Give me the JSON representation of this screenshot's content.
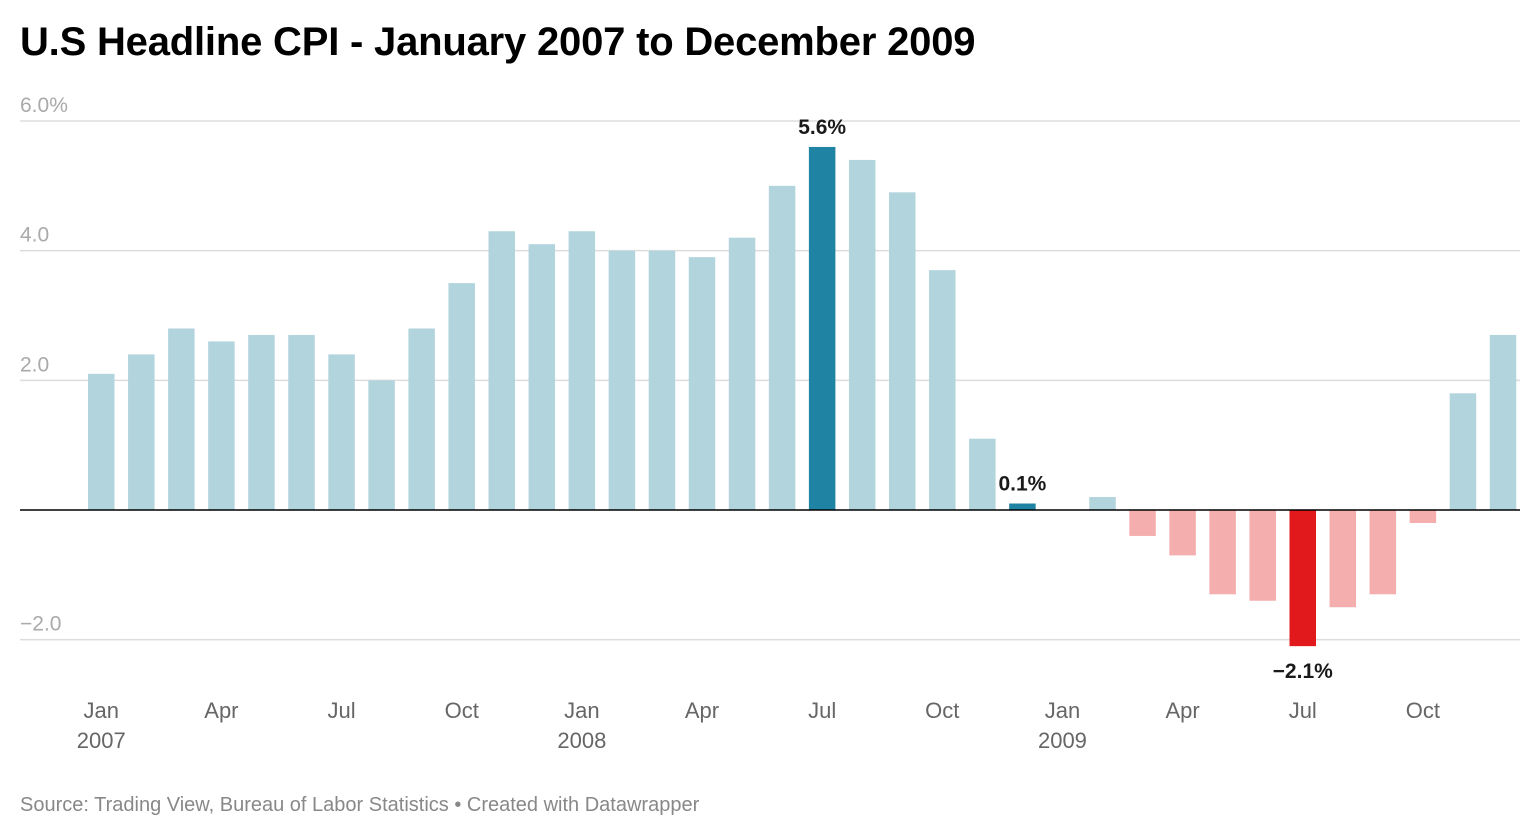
{
  "title": "U.S Headline CPI - January 2007 to December 2009",
  "footer": {
    "source": "Source: Trading View, Bureau of Labor Statistics",
    "separator": " • ",
    "credit": "Created with Datawrapper"
  },
  "colors": {
    "positive": "#b2d4dd",
    "positive_highlight": "#1f83a4",
    "negative": "#f4aeae",
    "negative_highlight": "#e1181c",
    "gridline": "#dddddd",
    "baseline": "#000000",
    "axis_text": "#aaaaaa",
    "tick_text": "#666666",
    "annotation_text": "#1a1a1a"
  },
  "chart_data": {
    "type": "bar",
    "title": "U.S Headline CPI - January 2007 to December 2009",
    "xlabel": "",
    "ylabel": "",
    "ylim": [
      -2.6,
      6.0
    ],
    "grid": true,
    "y_ticks": [
      6.0,
      4.0,
      2.0,
      -2.0
    ],
    "y_tick_labels": [
      "6.0%",
      "4.0",
      "2.0",
      "−2.0"
    ],
    "categories": [
      "2007-01",
      "2007-02",
      "2007-03",
      "2007-04",
      "2007-05",
      "2007-06",
      "2007-07",
      "2007-08",
      "2007-09",
      "2007-10",
      "2007-11",
      "2007-12",
      "2008-01",
      "2008-02",
      "2008-03",
      "2008-04",
      "2008-05",
      "2008-06",
      "2008-07",
      "2008-08",
      "2008-09",
      "2008-10",
      "2008-11",
      "2008-12",
      "2009-01",
      "2009-02",
      "2009-03",
      "2009-04",
      "2009-05",
      "2009-06",
      "2009-07",
      "2009-08",
      "2009-09",
      "2009-10",
      "2009-11",
      "2009-12"
    ],
    "values": [
      2.1,
      2.4,
      2.8,
      2.6,
      2.7,
      2.7,
      2.4,
      2.0,
      2.8,
      3.5,
      4.3,
      4.1,
      4.3,
      4.0,
      4.0,
      3.9,
      4.2,
      5.0,
      5.6,
      5.4,
      4.9,
      3.7,
      1.1,
      0.1,
      0.0,
      0.2,
      -0.4,
      -0.7,
      -1.3,
      -1.4,
      -2.1,
      -1.5,
      -1.3,
      -0.2,
      1.8,
      2.7
    ],
    "highlight_indices": [
      18,
      23,
      30
    ],
    "x_tick_labels": [
      {
        "index": 0,
        "month": "Jan",
        "year": "2007"
      },
      {
        "index": 3,
        "month": "Apr",
        "year": ""
      },
      {
        "index": 6,
        "month": "Jul",
        "year": ""
      },
      {
        "index": 9,
        "month": "Oct",
        "year": ""
      },
      {
        "index": 12,
        "month": "Jan",
        "year": "2008"
      },
      {
        "index": 15,
        "month": "Apr",
        "year": ""
      },
      {
        "index": 18,
        "month": "Jul",
        "year": ""
      },
      {
        "index": 21,
        "month": "Oct",
        "year": ""
      },
      {
        "index": 24,
        "month": "Jan",
        "year": "2009"
      },
      {
        "index": 27,
        "month": "Apr",
        "year": ""
      },
      {
        "index": 30,
        "month": "Jul",
        "year": ""
      },
      {
        "index": 33,
        "month": "Oct",
        "year": ""
      }
    ],
    "annotations": [
      {
        "index": 18,
        "text": "5.6%",
        "position": "above"
      },
      {
        "index": 23,
        "text": "0.1%",
        "position": "above"
      },
      {
        "index": 30,
        "text": "−2.1%",
        "position": "below"
      }
    ]
  }
}
